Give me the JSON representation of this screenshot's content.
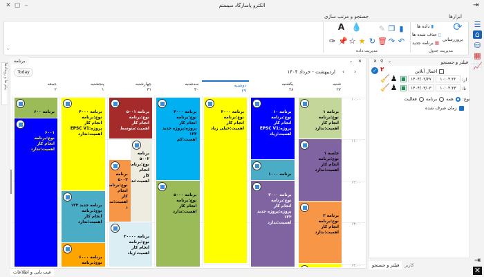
{
  "window": {
    "title": "الکترو پاسارگاد سیستم"
  },
  "tabs": [
    {
      "label": "ابزارها",
      "active": true
    },
    {
      "label": "جستجو و مرتب سازی",
      "active": false
    }
  ],
  "ribbon": {
    "table_group": {
      "label": "مدیریت جدول",
      "refresh": "بروزرسانی",
      "data": "داده ها",
      "deleted": "حذف شده ها",
      "new_program": "برنامه جدید"
    },
    "data_group": {
      "label": "مدیریت داده"
    }
  },
  "calendar": {
    "tab": "برنامه",
    "today": "Today",
    "range": "اردیبهشت - خرداد ۱۴۰۴",
    "days": [
      {
        "name": "شنبه",
        "date": "۲۷"
      },
      {
        "name": "یکشنبه",
        "date": "۲۸"
      },
      {
        "name": "دوشنبه",
        "date": "۲۹",
        "today": true
      },
      {
        "name": "سه‌شنبه",
        "date": "۳۰"
      },
      {
        "name": "چهارشنبه",
        "date": "۳۱"
      },
      {
        "name": "پنجشنبه",
        "date": "۱"
      },
      {
        "name": "جمعه",
        "date": "۲"
      }
    ],
    "times": [
      "۱۰:۰۰",
      "۱۱:۰۰",
      "۱۲:۰۰",
      "۱۳:۰۰",
      "۱۴:۰۰"
    ],
    "events": [
      {
        "day": 0,
        "start": "10:00",
        "end": "11:00",
        "color": "#c4d79b",
        "text": "#000",
        "lines": [
          "برنامه ۱",
          "نوع:برنامه",
          "انجام کار",
          "اهمیت:ندارد"
        ]
      },
      {
        "day": 0,
        "start": "11:00",
        "end": "12:30",
        "color": "#8064a2",
        "text": "#000",
        "lines": [
          "جلسه ۱",
          "نوع:برنامه",
          "انجام کار",
          "اهمیت:ندارد"
        ]
      },
      {
        "day": 0,
        "start": "12:30",
        "end": "14:00",
        "color": "#f79646",
        "text": "#000",
        "lines": [
          "برنامه ۲",
          "نوع:برنامه",
          "انجام کار",
          "اهمیت:ندارد"
        ]
      },
      {
        "day": 0,
        "start": "14:00",
        "end": "15:00",
        "color": "#ffff00",
        "text": "#000",
        "lines": []
      },
      {
        "day": 1,
        "start": "10:00",
        "end": "11:30",
        "color": "#0000ff",
        "text": "#fff",
        "lines": [
          "برنامه ۱۰",
          "نوع:برنامه",
          "انجام کار",
          "پروژه:EPSC V1",
          "اهمیت:زیاد"
        ]
      },
      {
        "day": 1,
        "start": "11:30",
        "end": "12:00",
        "color": "#4bacc6",
        "text": "#000",
        "lines": [
          "برنامه ۱۰۰۰"
        ]
      },
      {
        "day": 1,
        "start": "12:00",
        "end": "14:30",
        "color": "#8064a2",
        "text": "#fff",
        "lines": [
          "برنامه ۲۰۰۰",
          "نوع:برنامه",
          "انجام کار",
          "پروژه:پروژه جدید ۱۲۳",
          "اهمیت:ندارد"
        ]
      },
      {
        "day": 2,
        "start": "10:00",
        "end": "14:00",
        "color": "#ffff00",
        "text": "#000",
        "lines": [
          "برنامه ۳۰۰۰",
          "نوع:برنامه",
          "انجام کار",
          "اهمیت:خیلی زیاد"
        ]
      },
      {
        "day": 3,
        "start": "10:00",
        "end": "12:00",
        "color": "#00b0f0",
        "text": "#000",
        "lines": [
          "برنامه ۴۰۰۰",
          "نوع:برنامه",
          "انجام کار",
          "پروژه:پروژه جدید ۱۲۳",
          "اهمیت:کم"
        ]
      },
      {
        "day": 3,
        "start": "12:00",
        "end": "14:30",
        "color": "#9bbb59",
        "text": "#000",
        "lines": [
          "برنامه ۵۰۰۰",
          "نوع:برنامه",
          "انجام کار",
          "اهمیت:ندارد"
        ]
      },
      {
        "day": 4,
        "start": "10:00",
        "end": "11:00",
        "color": "#a52a2a",
        "text": "#fff",
        "lines": [
          "برنامه ۵۰۰۱",
          "نوع:برنامه",
          "انجام کار",
          "اهمیت:متوسط"
        ]
      },
      {
        "day": 4,
        "start": "11:00",
        "end": "13:00",
        "color": "#eeece1",
        "text": "#000",
        "half": "right",
        "lines": [
          "برنامه",
          "۵۰۰۲",
          "نوع:برنامه",
          "انجام کار",
          "اهمیت:ندار"
        ]
      },
      {
        "day": 4,
        "start": "11:30",
        "end": "13:00",
        "color": "#f79646",
        "text": "#000",
        "half": "left",
        "lines": [
          "برنامه",
          "۵۰۰۳",
          "نوع:برنامه",
          "انجام کار",
          "اهمیت:ندار",
          "د"
        ]
      },
      {
        "day": 4,
        "start": "13:00",
        "end": "14:30",
        "color": "#daeef3",
        "text": "#000",
        "lines": [
          "برنامه ۳۰۰۰۰",
          "نوع:برنامه",
          "انجام کار",
          "اهمیت:زیاد"
        ]
      },
      {
        "day": 5,
        "start": "10:00",
        "end": "12:15",
        "color": "#ffff00",
        "text": "#000",
        "lines": [
          "برنامه ۴۰۰۰",
          "نوع:برنامه",
          "انجام کار",
          "پروژه:EPSC V1",
          "اهمیت:ندارد"
        ]
      },
      {
        "day": 5,
        "start": "12:15",
        "end": "13:30",
        "color": "#4bacc6",
        "text": "#000",
        "lines": [
          "برنامه جدید ۱۲۳",
          "نوع:برنامه",
          "انجام کار",
          "اهمیت:ندارد"
        ]
      },
      {
        "day": 5,
        "start": "13:30",
        "end": "15:00",
        "color": "#ffa500",
        "text": "#000",
        "lines": [
          "برنامه ۶۰۰۰",
          "نوع:برنامه"
        ]
      },
      {
        "day": 6,
        "start": "10:00",
        "end": "10:30",
        "color": "#9bbb59",
        "text": "#000",
        "lines": [
          "برنامه ۶۰۰"
        ]
      },
      {
        "day": 6,
        "start": "10:30",
        "end": "14:30",
        "color": "#0000ff",
        "text": "#ffff00",
        "lines": [
          "۶۰۰۱",
          "نوع:برنامه",
          "انجام کار",
          "اهمیت:ندارد"
        ]
      }
    ]
  },
  "filter": {
    "title": "فیلتر و جستجو",
    "badge": "۲",
    "online_label": "اعمال آنلاین",
    "online": false,
    "from_label": "از:",
    "from_time": "۱۰:۰۴:۲۲",
    "from_date": "۱۴۰۴/۰۲/۲۷",
    "to_label": "تا:",
    "to_time": "۱۰:۰۴:۲۳",
    "to_date": "۱۴۰۴/۰۳/۰۳",
    "type_label": "نوع:",
    "type_options": [
      "همه",
      "برنامه",
      "فعالیت"
    ],
    "type_selected": "همه",
    "spent_label": "زمان صرف شده",
    "spent": true,
    "bottom_tabs": [
      "فیلتر و جستجو",
      "کاربر"
    ]
  },
  "left_strip": "پیام ها و رویدادها",
  "status_tab": "عیب یابی و اطلاعات",
  "accent": "#1a73c8"
}
